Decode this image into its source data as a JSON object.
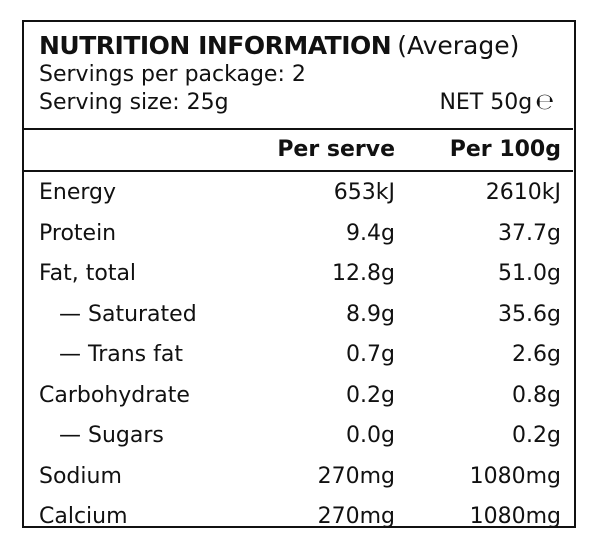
{
  "panel": {
    "title": "NUTRITION INFORMATION",
    "title_suffix": "(Average)",
    "servings_per_package": "Servings per package: 2",
    "serving_size": "Serving size: 25g",
    "net_weight": "NET 50g",
    "estimate_mark": "℮"
  },
  "columns": {
    "per_serve": "Per serve",
    "per_100g": "Per 100g"
  },
  "rows": [
    {
      "label": "Energy",
      "per_serve": "653kJ",
      "per_100g": "2610kJ"
    },
    {
      "label": "Protein",
      "per_serve": "9.4g",
      "per_100g": "37.7g"
    },
    {
      "label": "Fat, total",
      "per_serve": "12.8g",
      "per_100g": "51.0g"
    },
    {
      "label": "— Saturated",
      "per_serve": "8.9g",
      "per_100g": "35.6g"
    },
    {
      "label": "— Trans fat",
      "per_serve": "0.7g",
      "per_100g": "2.6g"
    },
    {
      "label": "Carbohydrate",
      "per_serve": "0.2g",
      "per_100g": "0.8g"
    },
    {
      "label": "— Sugars",
      "per_serve": "0.0g",
      "per_100g": "0.2g"
    },
    {
      "label": "Sodium",
      "per_serve": "270mg",
      "per_100g": "1080mg"
    },
    {
      "label": "Calcium",
      "per_serve": "270mg",
      "per_100g": "1080mg"
    }
  ]
}
